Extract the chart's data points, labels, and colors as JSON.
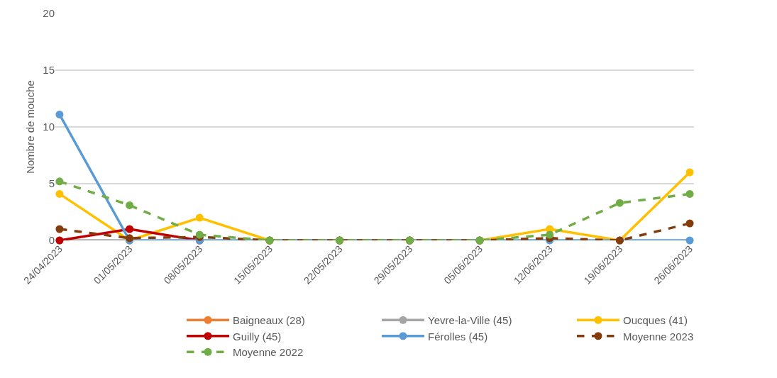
{
  "chart_data": {
    "type": "line",
    "ylabel": "Nombre de mouche",
    "categories": [
      "24/04/2023",
      "01/05/2023",
      "08/05/2023",
      "15/05/2023",
      "22/05/2023",
      "29/05/2023",
      "05/06/2023",
      "12/06/2023",
      "19/06/2023",
      "26/06/2023"
    ],
    "ylim": [
      0,
      20
    ],
    "yticks": [
      0,
      5,
      10,
      15,
      20
    ],
    "grid": "y",
    "legend": "bottom",
    "marker": "circle",
    "series": [
      {
        "name": "Baigneaux (28)",
        "color": "#ed7d31",
        "values": [
          null,
          null,
          null,
          null,
          null,
          null,
          null,
          null,
          null,
          null
        ]
      },
      {
        "name": "Yevre-la-Ville (45)",
        "color": "#a5a5a5",
        "values": [
          0,
          0,
          null,
          null,
          null,
          null,
          null,
          null,
          null,
          null
        ]
      },
      {
        "name": "Oucques (41)",
        "color": "#ffc000",
        "values": [
          4.1,
          0,
          2,
          0,
          0,
          0,
          0,
          1,
          0,
          6
        ]
      },
      {
        "name": "Guilly (45)",
        "color": "#c00000",
        "values": [
          0,
          1,
          0,
          null,
          null,
          null,
          null,
          null,
          null,
          null
        ]
      },
      {
        "name": "Férolles (45)",
        "color": "#5b9bd5",
        "values": [
          11.1,
          0,
          0,
          0,
          0,
          0,
          0,
          0,
          0,
          0
        ]
      },
      {
        "name": "Moyenne 2023",
        "color": "#843c0c",
        "line_style": "dashed",
        "values": [
          1,
          0.2,
          0.3,
          0,
          0,
          0,
          0,
          0.2,
          0,
          1.5
        ]
      },
      {
        "name": "Moyenne 2022",
        "color": "#70ad47",
        "line_style": "dashed",
        "values": [
          5.2,
          3.1,
          0.5,
          0,
          0,
          0,
          0,
          0.5,
          3.3,
          4.1
        ]
      }
    ]
  }
}
